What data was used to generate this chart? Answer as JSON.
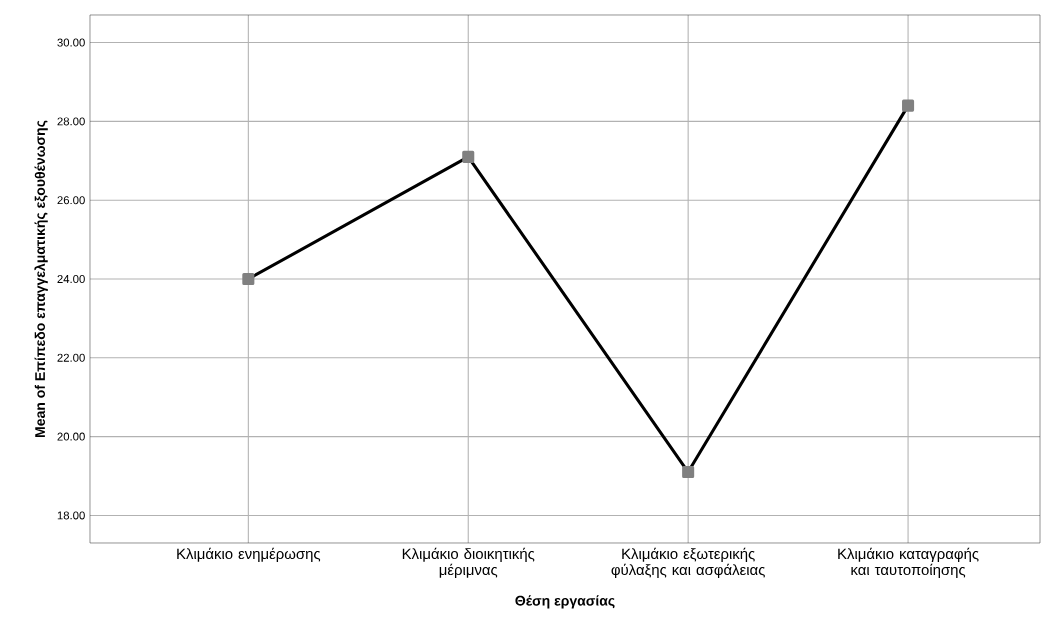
{
  "chart_data": {
    "type": "line",
    "xlabel": "Θέση εργασίας",
    "ylabel": "Mean of Επίπεδο επαγγελματικής εξουθένωσης",
    "categories": [
      "Κλιμάκιο ενημέρωσης",
      "Κλιμάκιο διοικητικής μέριμνας",
      "Κλιμάκιο εξωτερικής φύλαξης και ασφάλειας",
      "Κλιμάκιο καταγραφής και ταυτοποίησης"
    ],
    "series": [
      {
        "color": "#000000",
        "values": [
          24.0,
          27.1,
          19.1,
          28.4
        ]
      }
    ],
    "ylim": [
      17.3,
      30.7
    ],
    "yticks": [
      {
        "value": 18,
        "label": "18.00"
      },
      {
        "value": 20,
        "label": "20.00"
      },
      {
        "value": 22,
        "label": "22.00"
      },
      {
        "value": 24,
        "label": "24.00"
      },
      {
        "value": 26,
        "label": "26.00"
      },
      {
        "value": 28,
        "label": "28.00"
      },
      {
        "value": 30,
        "label": "30.00"
      }
    ],
    "grid": true,
    "marker": "square",
    "line_style": "solid"
  }
}
